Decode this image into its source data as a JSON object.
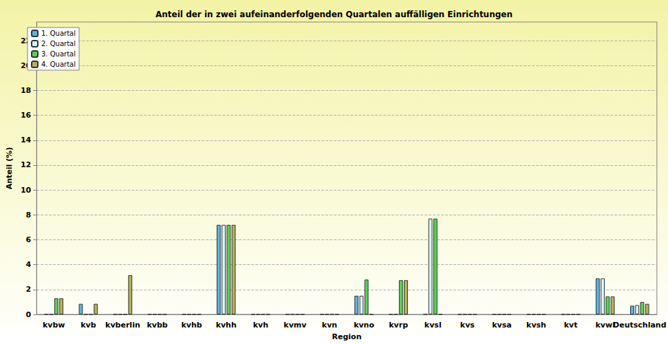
{
  "chart_data": {
    "type": "bar",
    "title": "Anteil der in zwei aufeinanderfolgenden Quartalen auffälligen Einrichtungen",
    "x_label": "Region",
    "y_label": "Anteil (%)",
    "categories": [
      "kvbw",
      "kvb",
      "kvberlin",
      "kvbb",
      "kvhb",
      "kvhh",
      "kvh",
      "kvmv",
      "kvn",
      "kvno",
      "kvrp",
      "kvsl",
      "kvs",
      "kvsa",
      "kvsh",
      "kvt",
      "kvwl",
      "Deutschland"
    ],
    "series": [
      {
        "name": "1. Quartal",
        "color": "#5cb3e4",
        "values": [
          0,
          0.85,
          0,
          0,
          0,
          7.2,
          0,
          0,
          0,
          1.5,
          0,
          0,
          0,
          0,
          0,
          0,
          2.9,
          0.7
        ]
      },
      {
        "name": "2. Quartal",
        "color": "#d6f4f7",
        "values": [
          0,
          0,
          0,
          0,
          0,
          7.2,
          0,
          0,
          0,
          1.5,
          0,
          7.7,
          0,
          0,
          0,
          0,
          2.9,
          0.75
        ]
      },
      {
        "name": "3. Quartal",
        "color": "#58d158",
        "values": [
          1.3,
          0,
          0,
          0,
          0,
          7.2,
          0,
          0,
          0,
          2.8,
          2.75,
          7.7,
          0,
          0,
          0,
          0,
          1.45,
          1.0
        ]
      },
      {
        "name": "4. Quartal",
        "color": "#b3b35a",
        "values": [
          1.3,
          0.85,
          3.15,
          0,
          0,
          7.2,
          0,
          0,
          0,
          0,
          2.75,
          0,
          0,
          0,
          0,
          0,
          1.45,
          0.85
        ]
      }
    ],
    "ylim": [
      0,
      23.5
    ],
    "yticks": [
      0,
      2,
      4,
      6,
      8,
      10,
      12,
      14,
      16,
      18,
      20,
      22
    ],
    "grid": true,
    "legend": "upper left"
  }
}
